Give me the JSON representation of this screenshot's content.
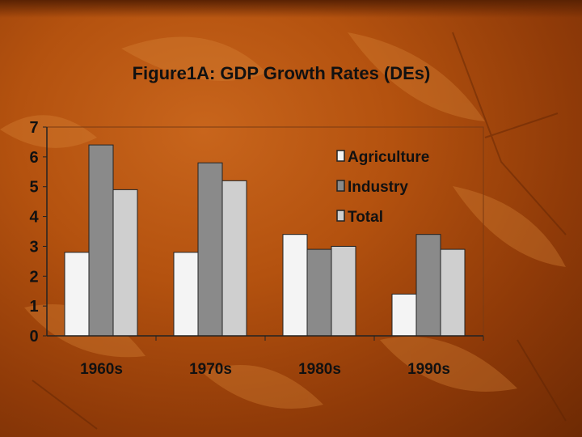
{
  "chart_data": {
    "type": "bar",
    "title": "Figure1A: GDP Growth Rates (DEs)",
    "xlabel": "",
    "ylabel": "",
    "ylim": [
      0,
      7
    ],
    "yticks": [
      0,
      1,
      2,
      3,
      4,
      5,
      6,
      7
    ],
    "categories": [
      "1960s",
      "1970s",
      "1980s",
      "1990s"
    ],
    "series": [
      {
        "name": "Agriculture",
        "values": [
          2.8,
          2.8,
          3.4,
          1.4
        ],
        "color": "#f4f4f4"
      },
      {
        "name": "Industry",
        "values": [
          6.4,
          5.8,
          2.9,
          3.4
        ],
        "color": "#8a8a8a"
      },
      {
        "name": "Total",
        "values": [
          4.9,
          5.2,
          3.0,
          2.9
        ],
        "color": "#cfcfcf"
      }
    ],
    "legend_position": "top-right",
    "grid": false
  }
}
